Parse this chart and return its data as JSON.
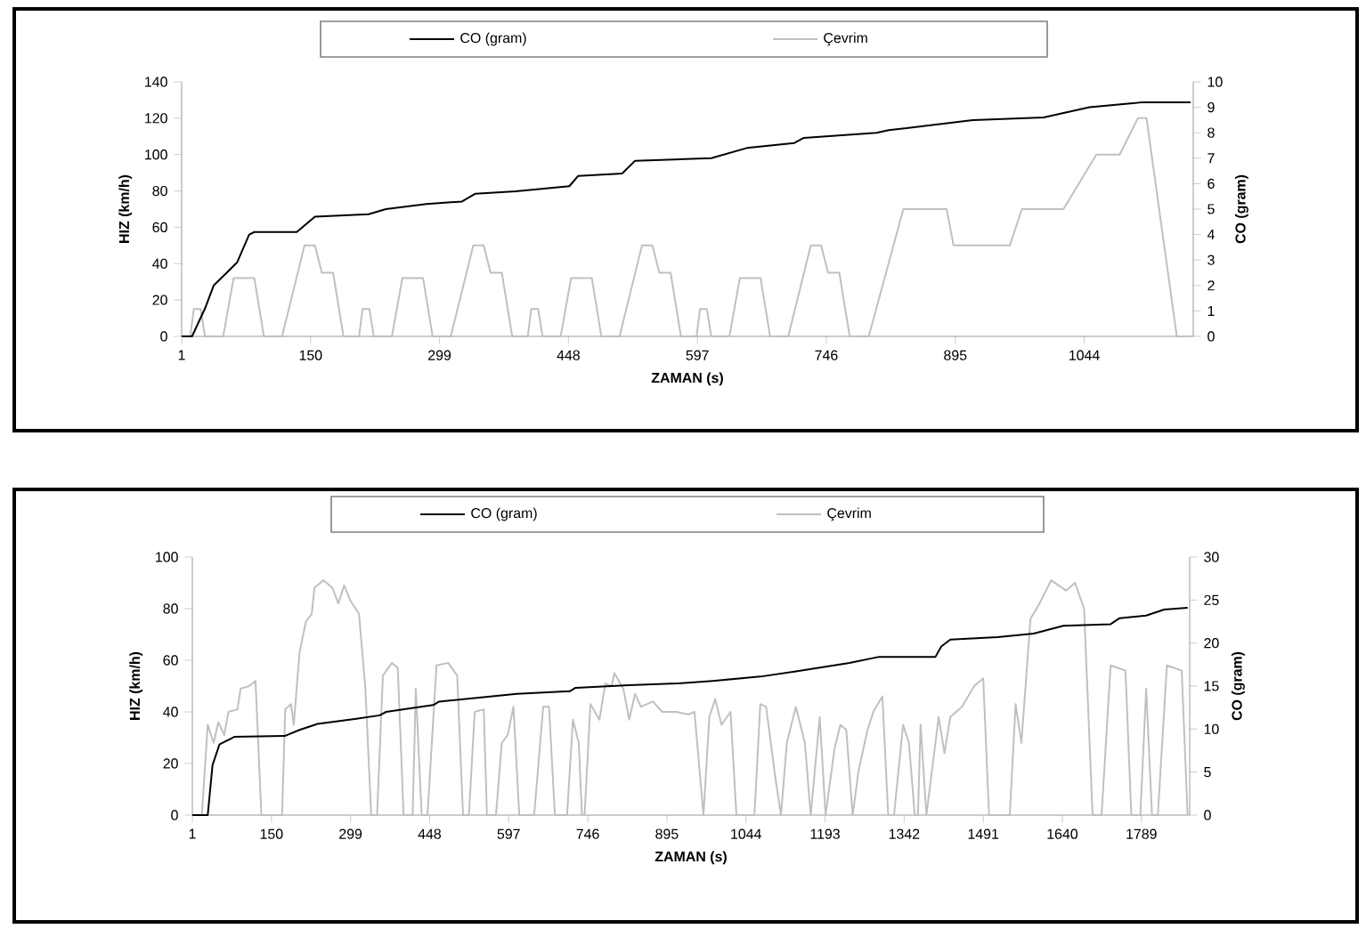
{
  "chart_data": [
    {
      "type": "line",
      "xlabel": "ZAMAN (s)",
      "ylabel": "HIZ (km/h)",
      "y2label": "CO (gram)",
      "legend": "top",
      "xlim": [
        1,
        1170
      ],
      "xticks": [
        1,
        150,
        299,
        448,
        597,
        746,
        895,
        1044
      ],
      "ylim": [
        0,
        140
      ],
      "yticks": [
        0,
        20,
        40,
        60,
        80,
        100,
        120,
        140
      ],
      "y2lim": [
        0,
        10
      ],
      "y2ticks": [
        0,
        1,
        2,
        3,
        4,
        5,
        6,
        7,
        8,
        9,
        10
      ],
      "series": [
        {
          "name": "CO (gram)",
          "color": "#000000",
          "axis": "y2",
          "x": [
            1,
            13,
            28,
            38,
            65,
            79,
            85,
            134,
            155,
            217,
            237,
            284,
            325,
            340,
            387,
            449,
            459,
            510,
            525,
            613,
            654,
            709,
            720,
            804,
            818,
            915,
            997,
            1050,
            1112,
            1167
          ],
          "values": [
            0,
            0,
            1.1,
            2.0,
            2.9,
            4.0,
            4.1,
            4.1,
            4.7,
            4.8,
            5.0,
            5.2,
            5.3,
            5.6,
            5.7,
            5.9,
            6.3,
            6.4,
            6.9,
            7.0,
            7.4,
            7.6,
            7.8,
            8.0,
            8.1,
            8.5,
            8.6,
            9.0,
            9.2,
            9.2
          ]
        },
        {
          "name": "Çevrim",
          "color": "#c0c0c0",
          "x": [
            1,
            11,
            15,
            23,
            28,
            49,
            61,
            85,
            96,
            117,
            143,
            155,
            163,
            176,
            188,
            206,
            210,
            218,
            223,
            244,
            256,
            280,
            291,
            312,
            338,
            350,
            358,
            371,
            383,
            401,
            405,
            413,
            418,
            439,
            451,
            475,
            486,
            507,
            533,
            545,
            553,
            566,
            578,
            596,
            600,
            608,
            613,
            634,
            646,
            670,
            681,
            702,
            728,
            740,
            748,
            761,
            773,
            795,
            835,
            885,
            893,
            958,
            972,
            1020,
            1058,
            1085,
            1106,
            1116,
            1151,
            1167
          ],
          "values": [
            0,
            0,
            15,
            15,
            0,
            0,
            32,
            32,
            0,
            0,
            50,
            50,
            35,
            35,
            0,
            0,
            15,
            15,
            0,
            0,
            32,
            32,
            0,
            0,
            50,
            50,
            35,
            35,
            0,
            0,
            15,
            15,
            0,
            0,
            32,
            32,
            0,
            0,
            50,
            50,
            35,
            35,
            0,
            0,
            15,
            15,
            0,
            0,
            32,
            32,
            0,
            0,
            50,
            50,
            35,
            35,
            0,
            0,
            70,
            70,
            50,
            50,
            70,
            70,
            100,
            100,
            120,
            120,
            0,
            0
          ]
        }
      ]
    },
    {
      "type": "line",
      "xlabel": "ZAMAN (s)",
      "ylabel": "HIZ (km/h)",
      "y2label": "CO (gram)",
      "legend": "top",
      "xlim": [
        1,
        1880
      ],
      "xticks": [
        1,
        150,
        299,
        448,
        597,
        746,
        895,
        1044,
        1193,
        1342,
        1491,
        1640,
        1789
      ],
      "ylim": [
        0,
        100
      ],
      "yticks": [
        0,
        20,
        40,
        60,
        80,
        100
      ],
      "y2lim": [
        0,
        30
      ],
      "y2ticks": [
        0,
        5,
        10,
        15,
        20,
        25,
        30
      ],
      "series": [
        {
          "name": "CO (gram)",
          "color": "#000000",
          "axis": "y2",
          "x": [
            1,
            30,
            39,
            52,
            80,
            175,
            203,
            237,
            310,
            354,
            366,
            455,
            466,
            612,
            712,
            723,
            824,
            914,
            981,
            1071,
            1138,
            1239,
            1295,
            1401,
            1412,
            1429,
            1518,
            1586,
            1642,
            1731,
            1748,
            1798,
            1832,
            1876
          ],
          "values": [
            0,
            0,
            5.8,
            8.2,
            9.1,
            9.2,
            9.9,
            10.6,
            11.2,
            11.6,
            12.0,
            12.8,
            13.2,
            14.1,
            14.4,
            14.8,
            15.1,
            15.3,
            15.6,
            16.1,
            16.7,
            17.7,
            18.4,
            18.4,
            19.6,
            20.4,
            20.7,
            21.1,
            22.0,
            22.2,
            22.9,
            23.2,
            23.9,
            24.1
          ]
        },
        {
          "name": "Çevrim",
          "color": "#c0c0c0",
          "x": [
            1,
            19,
            30,
            41,
            50,
            61,
            69,
            86,
            92,
            108,
            120,
            131,
            170,
            176,
            187,
            192,
            203,
            215,
            226,
            231,
            248,
            265,
            276,
            287,
            299,
            315,
            327,
            338,
            349,
            360,
            377,
            388,
            399,
            416,
            422,
            433,
            444,
            461,
            483,
            500,
            511,
            522,
            533,
            550,
            556,
            573,
            584,
            595,
            606,
            617,
            645,
            662,
            673,
            684,
            707,
            718,
            729,
            735,
            740,
            751,
            768,
            779,
            791,
            796,
            813,
            824,
            835,
            846,
            869,
            886,
            913,
            936,
            947,
            964,
            975,
            986,
            998,
            1015,
            1026,
            1060,
            1071,
            1082,
            1099,
            1110,
            1121,
            1138,
            1155,
            1166,
            1183,
            1194,
            1211,
            1222,
            1233,
            1245,
            1256,
            1273,
            1284,
            1301,
            1312,
            1323,
            1340,
            1351,
            1362,
            1368,
            1373,
            1384,
            1407,
            1418,
            1429,
            1451,
            1474,
            1491,
            1502,
            1541,
            1552,
            1563,
            1580,
            1597,
            1619,
            1647,
            1664,
            1681,
            1697,
            1714,
            1731,
            1759,
            1770,
            1787,
            1798,
            1809,
            1820,
            1837,
            1865,
            1876
          ],
          "values": [
            0,
            0,
            35,
            28,
            36,
            31,
            40,
            41,
            49,
            50,
            52,
            0,
            0,
            41,
            43,
            35,
            63,
            75,
            78,
            88,
            91,
            88,
            82,
            89,
            83,
            78,
            49,
            0,
            0,
            54,
            59,
            57,
            0,
            0,
            49,
            0,
            0,
            58,
            59,
            54,
            0,
            0,
            40,
            41,
            0,
            0,
            28,
            31,
            42,
            0,
            0,
            42,
            42,
            0,
            0,
            37,
            28,
            0,
            0,
            43,
            37,
            51,
            50,
            55,
            49,
            37,
            47,
            42,
            44,
            40,
            40,
            39,
            40,
            0,
            38,
            45,
            35,
            40,
            0,
            0,
            43,
            42,
            15,
            0,
            28,
            42,
            28,
            0,
            38,
            0,
            26,
            35,
            33,
            0,
            17,
            33,
            40,
            46,
            0,
            0,
            35,
            28,
            0,
            0,
            35,
            0,
            38,
            24,
            38,
            42,
            50,
            53,
            0,
            0,
            43,
            28,
            76,
            82,
            91,
            87,
            90,
            80,
            0,
            0,
            58,
            56,
            0,
            0,
            49,
            0,
            0,
            58,
            56,
            0
          ]
        }
      ]
    }
  ]
}
